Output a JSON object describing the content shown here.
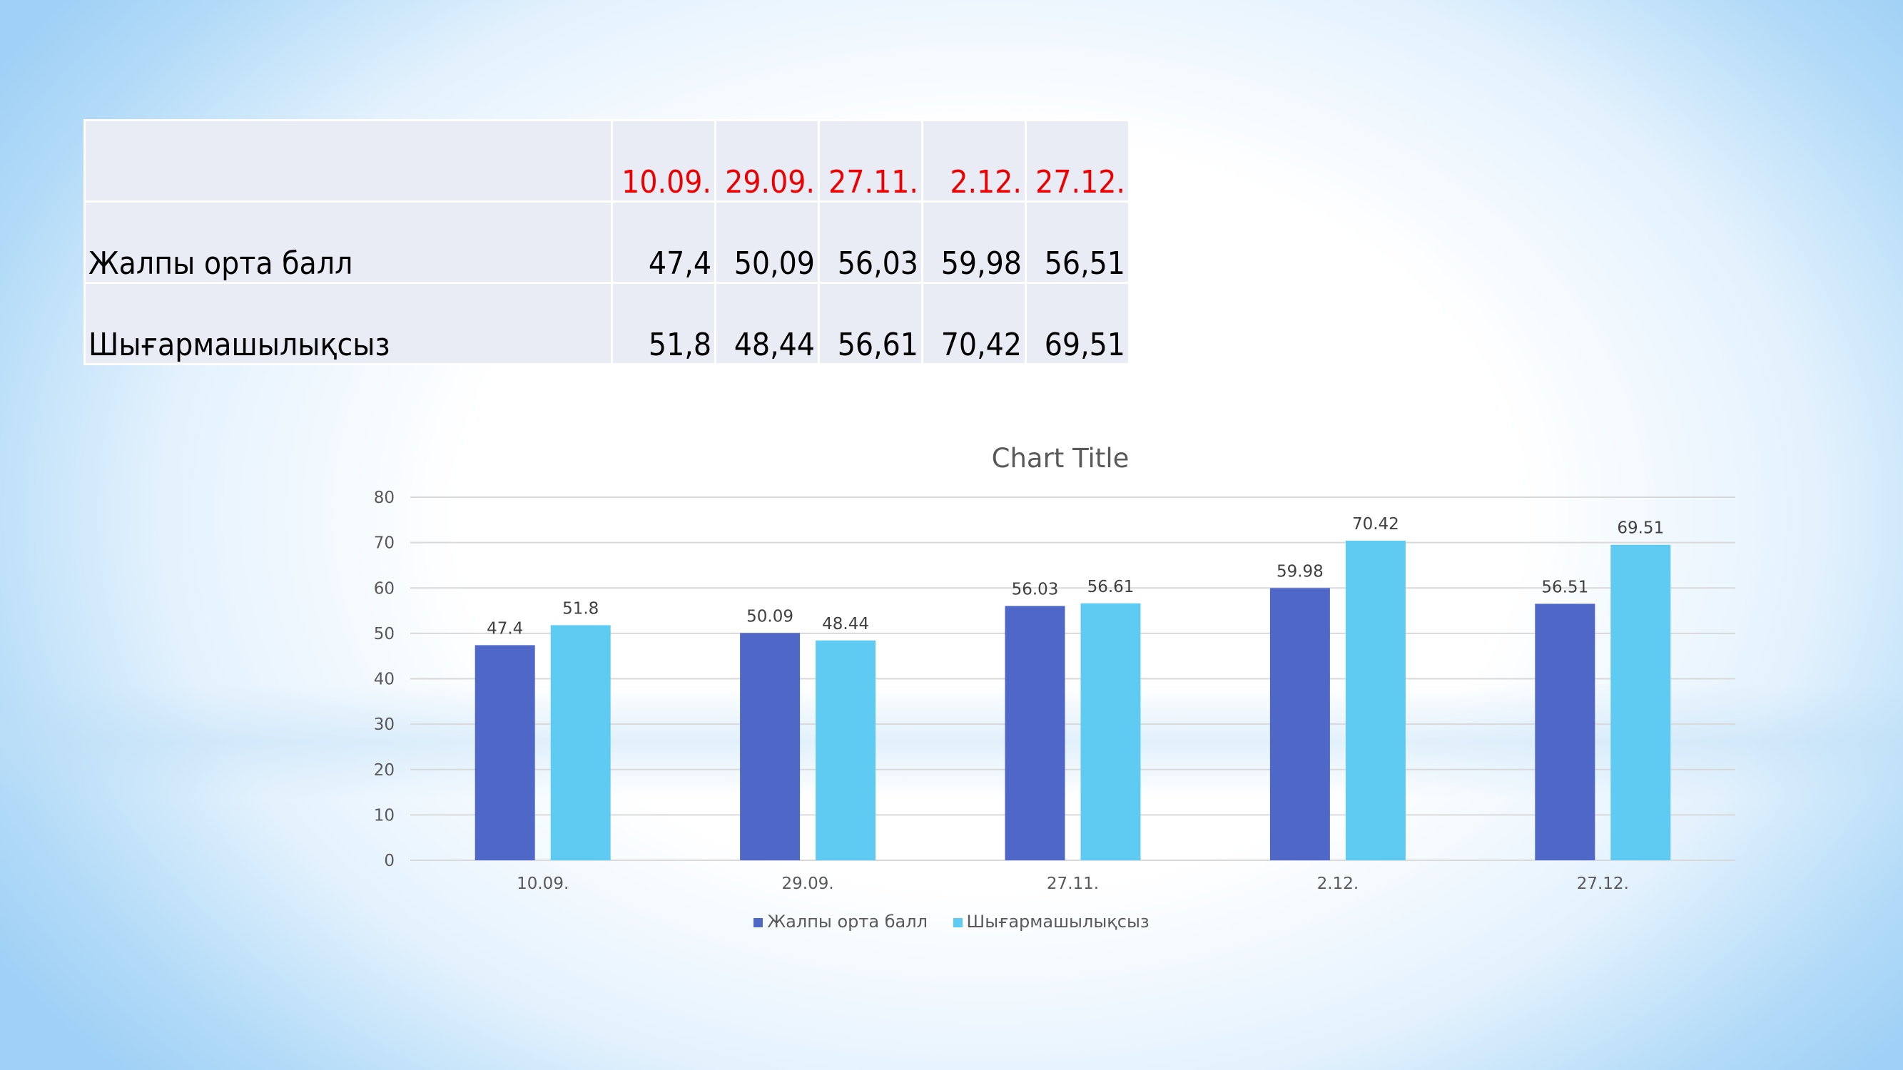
{
  "table": {
    "headers": [
      "",
      "10.09.",
      "29.09.",
      "27.11.",
      "2.12.",
      "27.12."
    ],
    "rows": [
      {
        "label": "Жалпы орта балл",
        "values": [
          "47,4",
          "50,09",
          "56,03",
          "59,98",
          "56,51"
        ]
      },
      {
        "label": "Шығармашылықсыз",
        "values": [
          "51,8",
          "48,44",
          "56,61",
          "70,42",
          "69,51"
        ]
      }
    ]
  },
  "chart_data": {
    "type": "bar",
    "title": "Chart Title",
    "categories": [
      "10.09.",
      "29.09.",
      "27.11.",
      "2.12.",
      "27.12."
    ],
    "series": [
      {
        "name": "Жалпы орта балл",
        "color": "#4f67c7",
        "values": [
          47.4,
          50.09,
          56.03,
          59.98,
          56.51
        ],
        "labels": [
          "47.4",
          "50.09",
          "56.03",
          "59.98",
          "56.51"
        ]
      },
      {
        "name": "Шығармашылықсыз",
        "color": "#5fcbf2",
        "values": [
          51.8,
          48.44,
          56.61,
          70.42,
          69.51
        ],
        "labels": [
          "51.8",
          "48.44",
          "56.61",
          "70.42",
          "69.51"
        ]
      }
    ],
    "ylim": [
      0,
      80
    ],
    "yticks": [
      "0",
      "10",
      "20",
      "30",
      "40",
      "50",
      "60",
      "70",
      "80"
    ],
    "grid": true,
    "legend": "bottom",
    "xlabel": "",
    "ylabel": ""
  }
}
